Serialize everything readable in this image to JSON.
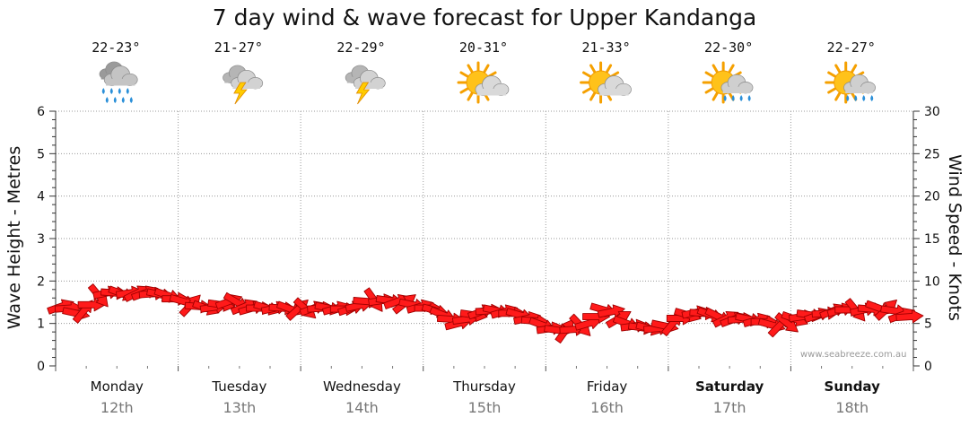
{
  "chart_data": {
    "type": "line",
    "title": "7 day wind & wave forecast for Upper Kandanga",
    "ylabel_left": "Wave Height - Metres",
    "ylabel_right": "Wind Speed - Knots",
    "ylim_left": [
      0,
      6
    ],
    "ylim_right": [
      0,
      30
    ],
    "yticks_left": [
      "0",
      "1",
      "2",
      "3",
      "4",
      "5",
      "6"
    ],
    "yticks_right": [
      "0",
      "5",
      "10",
      "15",
      "20",
      "25",
      "30"
    ],
    "grid": true,
    "watermark": "www.seabreeze.com.au",
    "days": [
      {
        "name": "Monday",
        "date": "12th",
        "temp": "22-23°",
        "icon": "heavy-rain-icon",
        "bold": false
      },
      {
        "name": "Tuesday",
        "date": "13th",
        "temp": "21-27°",
        "icon": "thunderstorm-icon",
        "bold": false
      },
      {
        "name": "Wednesday",
        "date": "14th",
        "temp": "22-29°",
        "icon": "thunderstorm-icon",
        "bold": false
      },
      {
        "name": "Thursday",
        "date": "15th",
        "temp": "20-31°",
        "icon": "partly-cloudy-icon",
        "bold": false
      },
      {
        "name": "Friday",
        "date": "16th",
        "temp": "21-33°",
        "icon": "partly-cloudy-icon",
        "bold": false
      },
      {
        "name": "Saturday",
        "date": "17th",
        "temp": "22-30°",
        "icon": "sun-shower-icon",
        "bold": true
      },
      {
        "name": "Sunday",
        "date": "18th",
        "temp": "22-27°",
        "icon": "sun-shower-icon",
        "bold": true
      }
    ],
    "series": [
      {
        "color": "#ff1a1a",
        "x_unit": "days from Monday 00:00",
        "wind_knots": [
          7.0,
          6.8,
          6.2,
          6.5,
          7.2,
          8.2,
          8.6,
          8.6,
          8.5,
          8.6,
          8.6,
          8.6,
          8.5,
          8.4,
          8.3,
          7.9,
          7.6,
          7.2,
          7.0,
          6.8,
          6.9,
          7.2,
          7.6,
          7.5,
          7.0,
          6.8,
          6.8,
          6.8,
          6.8,
          6.8,
          6.7,
          6.7,
          6.7,
          6.8,
          6.8,
          6.8,
          6.8,
          6.7,
          6.8,
          7.1,
          7.6,
          7.7,
          7.7,
          7.7,
          7.6,
          7.4,
          7.2,
          7.0,
          6.8,
          6.5,
          6.0,
          5.5,
          5.0,
          5.5,
          6.0,
          6.4,
          6.5,
          6.5,
          6.4,
          6.2,
          6.0,
          5.6,
          5.3,
          4.8,
          4.4,
          4.2,
          4.2,
          4.3,
          4.7,
          5.0,
          5.8,
          6.6,
          6.4,
          5.6,
          5.0,
          4.7,
          4.5,
          4.4,
          4.4,
          4.7,
          5.0,
          5.6,
          6.0,
          6.3,
          6.2,
          6.0,
          5.8,
          5.6,
          5.5,
          5.5,
          5.5,
          5.4,
          5.2,
          4.8,
          4.8,
          5.0,
          5.5,
          5.8,
          6.0,
          6.0,
          6.2,
          6.5,
          6.6,
          6.6,
          6.5,
          6.6,
          6.7,
          6.8,
          6.7,
          6.5,
          6.0,
          5.8
        ]
      }
    ]
  }
}
